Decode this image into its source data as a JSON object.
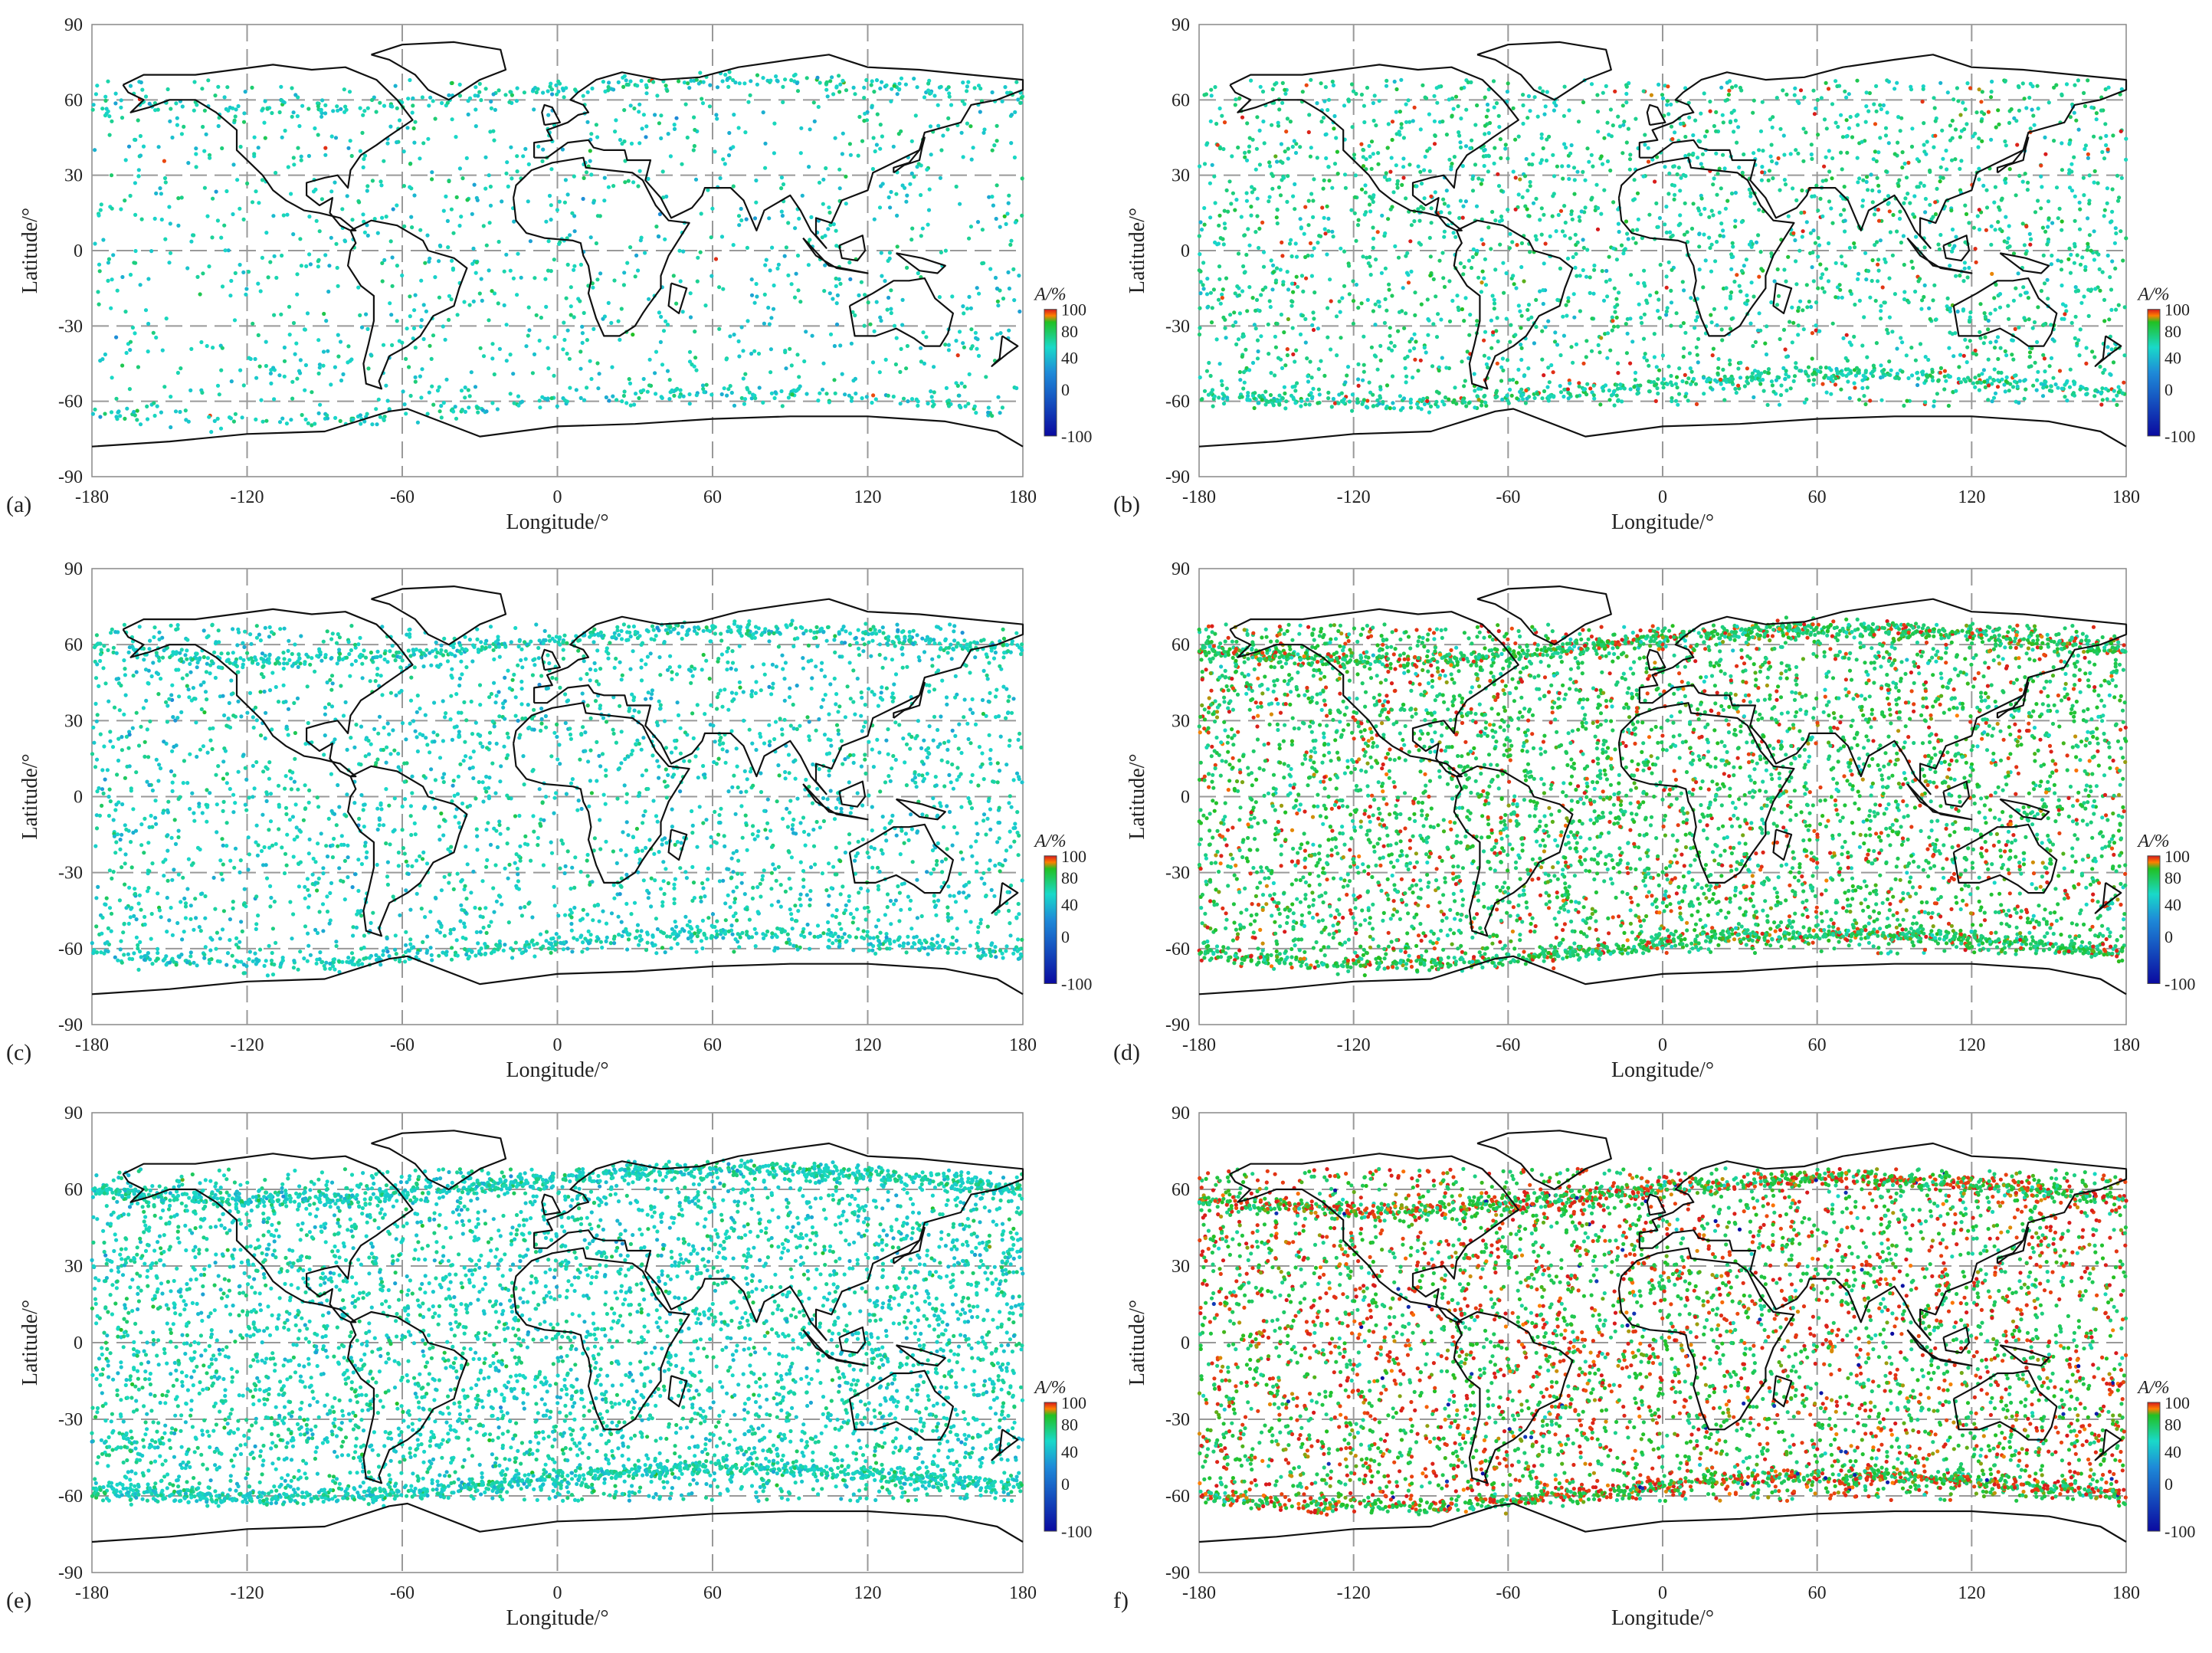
{
  "figure": {
    "type": "scatter-map-grid",
    "colorbar": {
      "label": "A/%",
      "ticks": [
        100,
        80,
        40,
        0,
        -100
      ],
      "stops": [
        {
          "v": 100,
          "color": "#d7191c"
        },
        {
          "v": 90,
          "color": "#ff7f00"
        },
        {
          "v": 80,
          "color": "#22c022"
        },
        {
          "v": 40,
          "color": "#19d9c9"
        },
        {
          "v": 0,
          "color": "#1e8ad8"
        },
        {
          "v": -100,
          "color": "#0a0aa0"
        }
      ]
    },
    "panels": [
      {
        "id": "a",
        "tag": "(a)",
        "xlabel": "Longitude/°",
        "ylabel": "Latitude/°",
        "xticks": [
          -180,
          -120,
          -60,
          0,
          60,
          120,
          180
        ],
        "yticks": [
          90,
          60,
          30,
          0,
          -30,
          -60,
          -90
        ],
        "xlim": [
          -180,
          180
        ],
        "ylim": [
          -90,
          90
        ],
        "grid": true,
        "distribution": "sparse",
        "mean_value": 40,
        "red_fraction": 0.005,
        "bands": [
          {
            "desc": "north arc",
            "lat": 62
          },
          {
            "desc": "south arc",
            "lat": -62
          }
        ]
      },
      {
        "id": "b",
        "tag": "(b)",
        "xlabel": "Longitude/°",
        "ylabel": "Latitude/°",
        "xticks": [
          -180,
          -120,
          -60,
          0,
          60,
          120,
          180
        ],
        "yticks": [
          90,
          60,
          30,
          0,
          -30,
          -60,
          -90
        ],
        "xlim": [
          -180,
          180
        ],
        "ylim": [
          -90,
          90
        ],
        "grid": true,
        "distribution": "medium",
        "mean_value": 50,
        "red_fraction": 0.05,
        "bands": [
          {
            "desc": "south arc",
            "lat": -55
          }
        ]
      },
      {
        "id": "c",
        "tag": "(c)",
        "xlabel": "Longitude/°",
        "ylabel": "Latitude/°",
        "xticks": [
          -180,
          -120,
          -60,
          0,
          60,
          120,
          180
        ],
        "yticks": [
          90,
          60,
          30,
          0,
          -30,
          -60,
          -90
        ],
        "xlim": [
          -180,
          180
        ],
        "ylim": [
          -90,
          90
        ],
        "grid": true,
        "distribution": "medium",
        "mean_value": 40,
        "red_fraction": 0.0,
        "bands": [
          {
            "desc": "north arc",
            "lat": 60
          },
          {
            "desc": "south arc",
            "lat": -60
          }
        ]
      },
      {
        "id": "d",
        "tag": "(d)",
        "xlabel": "Longitude/°",
        "ylabel": "Latitude/°",
        "xticks": [
          -180,
          -120,
          -60,
          0,
          60,
          120,
          180
        ],
        "yticks": [
          90,
          60,
          30,
          0,
          -30,
          -60,
          -90
        ],
        "xlim": [
          -180,
          180
        ],
        "ylim": [
          -90,
          90
        ],
        "grid": true,
        "distribution": "dense",
        "mean_value": 65,
        "red_fraction": 0.15,
        "bands": [
          {
            "desc": "north arc",
            "lat": 60
          },
          {
            "desc": "south arc",
            "lat": -60
          }
        ]
      },
      {
        "id": "e",
        "tag": "(e)",
        "xlabel": "Longitude/°",
        "ylabel": "Latitude/°",
        "xticks": [
          -180,
          -120,
          -60,
          0,
          60,
          120,
          180
        ],
        "yticks": [
          90,
          60,
          30,
          0,
          -30,
          -60,
          -90
        ],
        "xlim": [
          -180,
          180
        ],
        "ylim": [
          -90,
          90
        ],
        "grid": true,
        "distribution": "dense",
        "mean_value": 42,
        "red_fraction": 0.0,
        "bands": [
          {
            "desc": "north arc",
            "lat": 62
          },
          {
            "desc": "south arc",
            "lat": -55
          }
        ]
      },
      {
        "id": "f",
        "tag": "f)",
        "xlabel": "Longitude/°",
        "ylabel": "Latitude/°",
        "xticks": [
          -180,
          -120,
          -60,
          0,
          60,
          120,
          180
        ],
        "yticks": [
          90,
          60,
          30,
          0,
          -30,
          -60,
          -90
        ],
        "xlim": [
          -180,
          180
        ],
        "ylim": [
          -90,
          90
        ],
        "grid": true,
        "distribution": "dense",
        "mean_value": 70,
        "red_fraction": 0.3,
        "bands": [
          {
            "desc": "north arc",
            "lat": 58
          },
          {
            "desc": "south arc",
            "lat": -58
          }
        ]
      }
    ]
  }
}
